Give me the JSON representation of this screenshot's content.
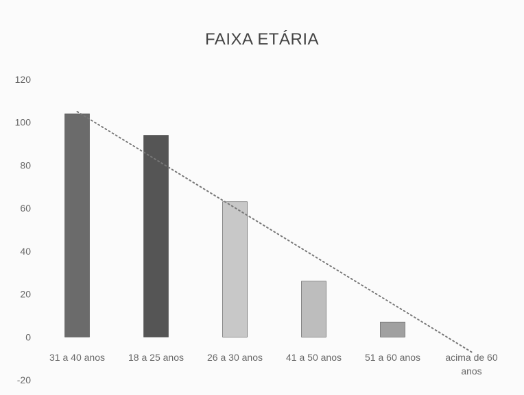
{
  "chart_data": {
    "type": "bar",
    "title": "FAIXA ETÁRIA",
    "xlabel": "",
    "ylabel": "",
    "categories": [
      "31 a 40 anos",
      "18 a 25 anos",
      "26 a 30 anos",
      "41 a 50 anos",
      "51 a 60 anos",
      "acima de 60 anos"
    ],
    "category_lines": [
      [
        "31 a 40 anos"
      ],
      [
        "18 a 25 anos"
      ],
      [
        "26 a 30 anos"
      ],
      [
        "41 a 50 anos"
      ],
      [
        "51 a 60 anos"
      ],
      [
        "acima de 60",
        "anos"
      ]
    ],
    "values": [
      104,
      94,
      63,
      26,
      7,
      0
    ],
    "bar_colors": [
      "#6b6b6b",
      "#555555",
      "#c8c8c8",
      "#bdbdbd",
      "#a0a0a0",
      "#ffffff"
    ],
    "trendline": {
      "type": "linear",
      "style": "dotted",
      "color": "#777777",
      "start": 105,
      "end": -7
    },
    "ylim": [
      -20,
      120
    ],
    "yticks": [
      -20,
      0,
      20,
      40,
      60,
      80,
      100,
      120
    ],
    "grid": false,
    "legend": "none"
  }
}
